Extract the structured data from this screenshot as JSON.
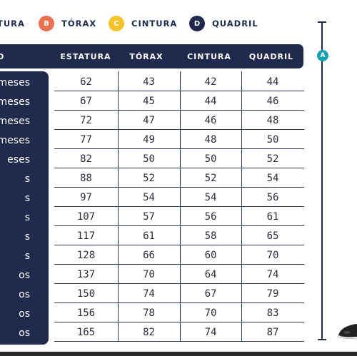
{
  "legend": [
    {
      "badge": "",
      "label": "TURA",
      "color": "#1f2a4d"
    },
    {
      "badge": "B",
      "label": "TÓRAX",
      "color": "#e9714f"
    },
    {
      "badge": "C",
      "label": "CINTURA",
      "color": "#f5c32c"
    },
    {
      "badge": "D",
      "label": "QUADRIL",
      "color": "#1f2a4d"
    }
  ],
  "header": {
    "age": "O",
    "estatura": "ESTATURA",
    "torax": "TÓRAX",
    "cintura": "CINTURA",
    "quadril": "QUADRIL"
  },
  "rows": [
    {
      "age": "meses",
      "estatura": "62",
      "torax": "43",
      "cintura": "42",
      "quadril": "44"
    },
    {
      "age": "meses",
      "estatura": "67",
      "torax": "45",
      "cintura": "44",
      "quadril": "46"
    },
    {
      "age": "meses",
      "estatura": "72",
      "torax": "47",
      "cintura": "46",
      "quadril": "48"
    },
    {
      "age": "meses",
      "estatura": "77",
      "torax": "49",
      "cintura": "48",
      "quadril": "50"
    },
    {
      "age": "eses",
      "estatura": "82",
      "torax": "50",
      "cintura": "50",
      "quadril": "52"
    },
    {
      "age": "s",
      "estatura": "88",
      "torax": "52",
      "cintura": "52",
      "quadril": "54"
    },
    {
      "age": "s",
      "estatura": "97",
      "torax": "54",
      "cintura": "54",
      "quadril": "56"
    },
    {
      "age": "s",
      "estatura": "107",
      "torax": "57",
      "cintura": "56",
      "quadril": "61"
    },
    {
      "age": "s",
      "estatura": "117",
      "torax": "61",
      "cintura": "58",
      "quadril": "65"
    },
    {
      "age": "s",
      "estatura": "128",
      "torax": "66",
      "cintura": "60",
      "quadril": "70"
    },
    {
      "age": "os",
      "estatura": "137",
      "torax": "70",
      "cintura": "64",
      "quadril": "74"
    },
    {
      "age": "os",
      "estatura": "150",
      "torax": "74",
      "cintura": "67",
      "quadril": "79"
    },
    {
      "age": "os",
      "estatura": "156",
      "torax": "78",
      "cintura": "70",
      "quadril": "83"
    },
    {
      "age": "os",
      "estatura": "165",
      "torax": "82",
      "cintura": "74",
      "quadril": "87"
    }
  ],
  "measure": {
    "badge": "A",
    "color": "#16a1b3"
  }
}
